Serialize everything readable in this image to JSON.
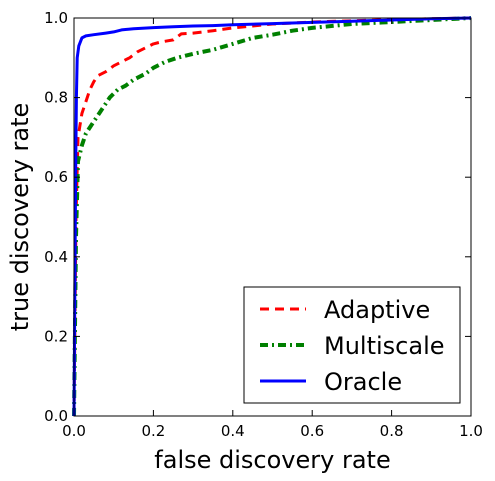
{
  "chart_data": {
    "type": "line",
    "xlabel": "false discovery rate",
    "ylabel": "true discovery rate",
    "xlim": [
      0.0,
      1.0
    ],
    "ylim": [
      0.0,
      1.0
    ],
    "xticks": [
      "0.0",
      "0.2",
      "0.4",
      "0.6",
      "0.8",
      "1.0"
    ],
    "yticks": [
      "0.0",
      "0.2",
      "0.4",
      "0.6",
      "0.8",
      "1.0"
    ],
    "grid": false,
    "legend_position": "bottom-right",
    "series": [
      {
        "name": "Adaptive",
        "color": "#ff0000",
        "style": "dashed",
        "points": [
          [
            0.0,
            0.0
          ],
          [
            0.005,
            0.5
          ],
          [
            0.01,
            0.7
          ],
          [
            0.02,
            0.76
          ],
          [
            0.03,
            0.79
          ],
          [
            0.04,
            0.82
          ],
          [
            0.05,
            0.84
          ],
          [
            0.06,
            0.855
          ],
          [
            0.08,
            0.865
          ],
          [
            0.1,
            0.88
          ],
          [
            0.12,
            0.89
          ],
          [
            0.14,
            0.9
          ],
          [
            0.16,
            0.915
          ],
          [
            0.18,
            0.925
          ],
          [
            0.2,
            0.935
          ],
          [
            0.22,
            0.94
          ],
          [
            0.25,
            0.945
          ],
          [
            0.27,
            0.96
          ],
          [
            0.3,
            0.962
          ],
          [
            0.35,
            0.968
          ],
          [
            0.4,
            0.975
          ],
          [
            0.45,
            0.98
          ],
          [
            0.5,
            0.985
          ],
          [
            0.6,
            0.99
          ],
          [
            0.7,
            0.993
          ],
          [
            0.8,
            0.996
          ],
          [
            0.9,
            0.998
          ],
          [
            1.0,
            1.0
          ]
        ]
      },
      {
        "name": "Multiscale",
        "color": "#008000",
        "style": "dashdot",
        "points": [
          [
            0.0,
            0.0
          ],
          [
            0.005,
            0.45
          ],
          [
            0.01,
            0.64
          ],
          [
            0.02,
            0.68
          ],
          [
            0.03,
            0.71
          ],
          [
            0.05,
            0.74
          ],
          [
            0.07,
            0.77
          ],
          [
            0.09,
            0.8
          ],
          [
            0.11,
            0.82
          ],
          [
            0.13,
            0.83
          ],
          [
            0.15,
            0.845
          ],
          [
            0.18,
            0.86
          ],
          [
            0.2,
            0.875
          ],
          [
            0.23,
            0.89
          ],
          [
            0.26,
            0.9
          ],
          [
            0.3,
            0.91
          ],
          [
            0.35,
            0.92
          ],
          [
            0.4,
            0.935
          ],
          [
            0.45,
            0.95
          ],
          [
            0.5,
            0.958
          ],
          [
            0.55,
            0.968
          ],
          [
            0.6,
            0.975
          ],
          [
            0.7,
            0.985
          ],
          [
            0.8,
            0.99
          ],
          [
            0.9,
            0.995
          ],
          [
            1.0,
            1.0
          ]
        ]
      },
      {
        "name": "Oracle",
        "color": "#0000ff",
        "style": "solid",
        "points": [
          [
            0.0,
            0.0
          ],
          [
            0.002,
            0.3
          ],
          [
            0.004,
            0.6
          ],
          [
            0.006,
            0.8
          ],
          [
            0.008,
            0.9
          ],
          [
            0.012,
            0.93
          ],
          [
            0.02,
            0.95
          ],
          [
            0.03,
            0.955
          ],
          [
            0.05,
            0.958
          ],
          [
            0.08,
            0.962
          ],
          [
            0.1,
            0.965
          ],
          [
            0.12,
            0.97
          ],
          [
            0.15,
            0.973
          ],
          [
            0.2,
            0.976
          ],
          [
            0.25,
            0.978
          ],
          [
            0.3,
            0.98
          ],
          [
            0.35,
            0.981
          ],
          [
            0.4,
            0.983
          ],
          [
            0.5,
            0.986
          ],
          [
            0.6,
            0.989
          ],
          [
            0.7,
            0.992
          ],
          [
            0.8,
            0.995
          ],
          [
            0.9,
            0.998
          ],
          [
            1.0,
            1.0
          ]
        ]
      }
    ]
  }
}
